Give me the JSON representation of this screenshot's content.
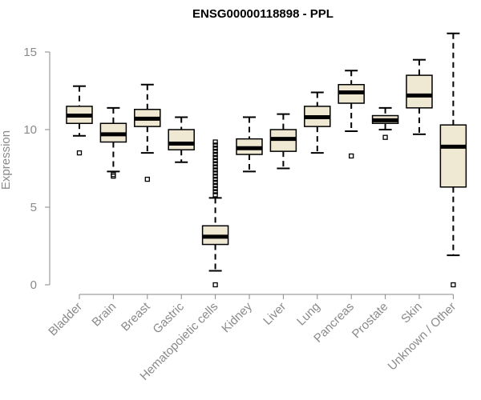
{
  "chart_data": {
    "type": "box",
    "title": "ENSG00000118898 - PPL",
    "xlabel": "",
    "ylabel": "Expression",
    "ylim": [
      0,
      15
    ],
    "yticks": [
      0,
      5,
      10,
      15
    ],
    "categories": [
      "Bladder",
      "Brain",
      "Breast",
      "Gastric",
      "Hematopoietic cells",
      "Kidney",
      "Liver",
      "Lung",
      "Pancreas",
      "Prostate",
      "Skin",
      "Unknown / Other"
    ],
    "boxes": [
      {
        "name": "Bladder",
        "whisker_low": 9.6,
        "q1": 10.4,
        "median": 10.9,
        "q3": 11.5,
        "whisker_high": 12.8,
        "outliers": [
          8.5
        ]
      },
      {
        "name": "Brain",
        "whisker_low": 7.3,
        "q1": 9.2,
        "median": 9.7,
        "q3": 10.4,
        "whisker_high": 11.4,
        "outliers": [
          7.0,
          7.1
        ]
      },
      {
        "name": "Breast",
        "whisker_low": 8.5,
        "q1": 10.2,
        "median": 10.7,
        "q3": 11.3,
        "whisker_high": 12.9,
        "outliers": [
          6.8
        ]
      },
      {
        "name": "Gastric",
        "whisker_low": 7.9,
        "q1": 8.7,
        "median": 9.1,
        "q3": 10.0,
        "whisker_high": 10.8,
        "outliers": []
      },
      {
        "name": "Hematopoietic cells",
        "whisker_low": 0.9,
        "q1": 2.6,
        "median": 3.1,
        "q3": 3.8,
        "whisker_high": 5.6,
        "outliers": [
          0.0,
          5.8,
          6.0,
          6.2,
          6.4,
          6.6,
          6.8,
          7.0,
          7.2,
          7.4,
          7.6,
          7.8,
          8.0,
          8.2,
          8.4,
          8.6,
          8.8,
          9.0,
          9.2
        ]
      },
      {
        "name": "Kidney",
        "whisker_low": 7.3,
        "q1": 8.4,
        "median": 8.8,
        "q3": 9.4,
        "whisker_high": 10.8,
        "outliers": []
      },
      {
        "name": "Liver",
        "whisker_low": 7.5,
        "q1": 8.6,
        "median": 9.4,
        "q3": 10.0,
        "whisker_high": 11.0,
        "outliers": []
      },
      {
        "name": "Lung",
        "whisker_low": 8.5,
        "q1": 10.2,
        "median": 10.8,
        "q3": 11.5,
        "whisker_high": 12.4,
        "outliers": []
      },
      {
        "name": "Pancreas",
        "whisker_low": 9.9,
        "q1": 11.7,
        "median": 12.4,
        "q3": 12.9,
        "whisker_high": 13.8,
        "outliers": [
          8.3
        ]
      },
      {
        "name": "Prostate",
        "whisker_low": 10.0,
        "q1": 10.4,
        "median": 10.6,
        "q3": 10.9,
        "whisker_high": 11.4,
        "outliers": [
          9.5
        ]
      },
      {
        "name": "Skin",
        "whisker_low": 9.7,
        "q1": 11.4,
        "median": 12.2,
        "q3": 13.5,
        "whisker_high": 14.5,
        "outliers": []
      },
      {
        "name": "Unknown / Other",
        "whisker_low": 1.9,
        "q1": 6.3,
        "median": 8.9,
        "q3": 10.3,
        "whisker_high": 16.2,
        "outliers": [
          0.0
        ]
      }
    ],
    "colors": {
      "box_fill": "#efe8d2",
      "box_stroke": "#000000",
      "median": "#000000",
      "axis": "#8a8a8a",
      "title": "#000000"
    }
  }
}
